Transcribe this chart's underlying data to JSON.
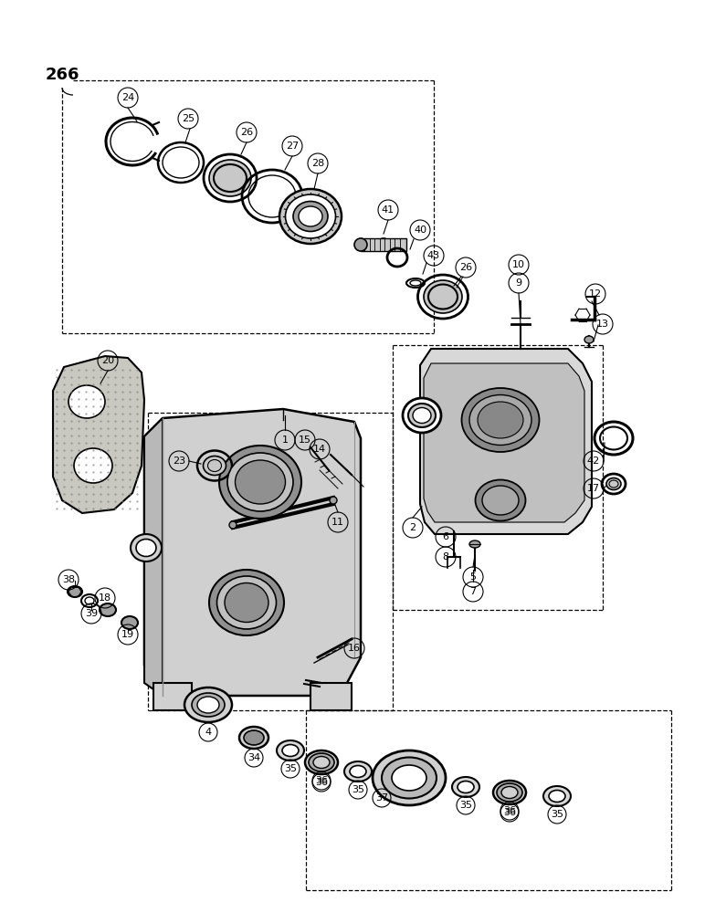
{
  "page_number": "266",
  "bg": "#ffffff",
  "lc": "#000000",
  "gray_light": "#c8c8c8",
  "gray_mid": "#a0a0a0",
  "gray_dark": "#808080",
  "gray_gasket": "#b0b0a8",
  "figsize": [
    7.72,
    10.0
  ],
  "dpi": 100
}
